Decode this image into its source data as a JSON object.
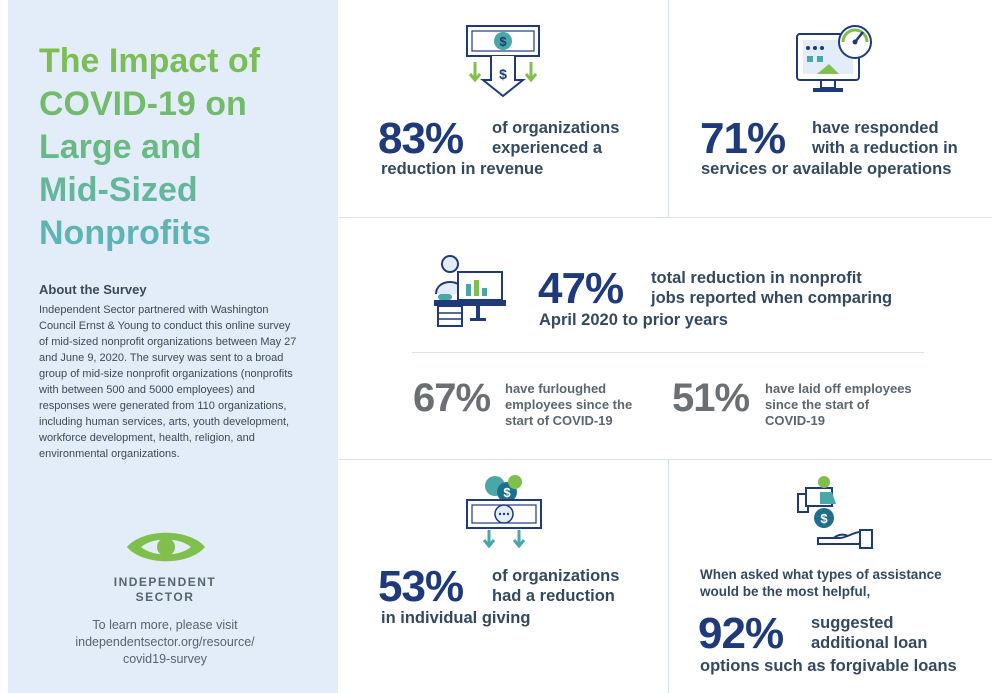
{
  "sidebar": {
    "title_lines": [
      "The Impact of",
      "COVID-19 on",
      "Large and",
      "Mid-Sized",
      "Nonprofits"
    ],
    "about_heading": "About the Survey",
    "about_text": "Independent Sector partnered with Washington Council Ernst & Young to conduct this online survey of mid-sized nonprofit organizations between May 27 and June 9, 2020. The survey was sent to a broad group of mid-size nonprofit organizations (nonprofits with between 500 and 5000 employees) and responses were generated from 110 organizations, including human services, arts, youth development, workforce development, health, religion, and environmental organizations.",
    "logo_lines": [
      "INDEPENDENT",
      "SECTOR"
    ],
    "learn_lines": [
      "To learn more, please visit",
      "independentsector.org/resource/",
      "covid19-survey"
    ]
  },
  "stats": {
    "revenue": {
      "value": "83%",
      "lines": [
        "of organizations",
        "experienced a",
        "reduction in revenue"
      ],
      "icon": "money-down-icon"
    },
    "services": {
      "value": "71%",
      "lines": [
        "have responded",
        "with a reduction in",
        "services or available operations"
      ],
      "icon": "monitor-gauge-icon"
    },
    "jobs": {
      "value": "47%",
      "lines": [
        "total reduction in nonprofit",
        "jobs reported when comparing",
        "April 2020 to prior years"
      ],
      "icon": "worker-desk-icon"
    },
    "furloughed": {
      "value": "67%",
      "lines": [
        "have furloughed",
        "employees since the",
        "start of COVID-19"
      ]
    },
    "laid_off": {
      "value": "51%",
      "lines": [
        "have laid off employees",
        "since the start of",
        "COVID-19"
      ]
    },
    "giving": {
      "value": "53%",
      "lines": [
        "of organizations",
        "had a reduction",
        "in individual giving"
      ],
      "icon": "giving-down-icon"
    },
    "loans": {
      "intro_lines": [
        "When asked what types of assistance",
        "would be the most helpful,"
      ],
      "value": "92%",
      "lines": [
        "suggested",
        "additional loan",
        "options such as forgivable loans"
      ],
      "icon": "hand-money-icon"
    }
  },
  "colors": {
    "navy": "#1f3a7a",
    "green": "#7fbf4b",
    "teal": "#4aa7a8",
    "sidebar_bg": "#e3edf9"
  }
}
